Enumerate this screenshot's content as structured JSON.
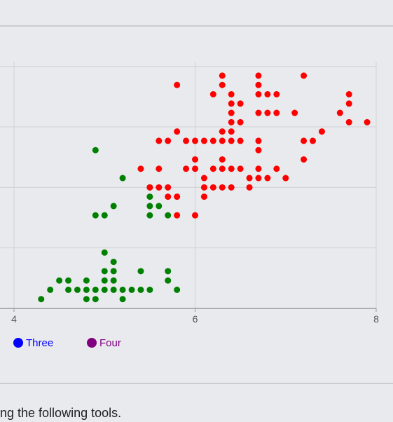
{
  "chart_data": {
    "type": "scatter",
    "title": "",
    "xlabel": "",
    "ylabel": "",
    "xlim": [
      3.7,
      8
    ],
    "ylim": [
      0,
      2.65
    ],
    "x_ticks": [
      4,
      6,
      8
    ],
    "y_ticks": [
      0.65,
      1.3,
      1.95,
      2.6
    ],
    "grid": true,
    "legend_position": "bottom-left",
    "series": [
      {
        "color": "#008000",
        "points": [
          [
            4.3,
            0.1
          ],
          [
            4.4,
            0.2
          ],
          [
            4.5,
            0.3
          ],
          [
            4.6,
            0.2
          ],
          [
            4.6,
            0.3
          ],
          [
            4.7,
            0.2
          ],
          [
            4.8,
            0.1
          ],
          [
            4.8,
            0.2
          ],
          [
            4.8,
            0.3
          ],
          [
            4.9,
            0.1
          ],
          [
            4.9,
            0.2
          ],
          [
            5.0,
            0.2
          ],
          [
            5.0,
            0.3
          ],
          [
            5.0,
            0.4
          ],
          [
            5.0,
            0.6
          ],
          [
            5.1,
            0.2
          ],
          [
            5.1,
            0.3
          ],
          [
            5.1,
            0.4
          ],
          [
            5.1,
            0.5
          ],
          [
            5.2,
            0.1
          ],
          [
            5.2,
            0.2
          ],
          [
            5.3,
            0.2
          ],
          [
            5.4,
            0.2
          ],
          [
            5.4,
            0.4
          ],
          [
            5.5,
            0.2
          ],
          [
            5.7,
            0.3
          ],
          [
            5.7,
            0.4
          ],
          [
            5.8,
            0.2
          ],
          [
            4.9,
            1.0
          ],
          [
            5.0,
            1.0
          ],
          [
            5.1,
            1.1
          ],
          [
            5.5,
            1.0
          ],
          [
            5.5,
            1.1
          ],
          [
            5.5,
            1.2
          ],
          [
            5.6,
            1.1
          ],
          [
            5.7,
            1.0
          ],
          [
            5.5,
            1.3
          ],
          [
            5.2,
            1.4
          ],
          [
            4.9,
            1.7
          ]
        ]
      },
      {
        "color": "#ff0000",
        "points": [
          [
            5.4,
            1.5
          ],
          [
            5.6,
            1.5
          ],
          [
            5.5,
            1.3
          ],
          [
            5.6,
            1.3
          ],
          [
            5.7,
            1.3
          ],
          [
            5.7,
            1.2
          ],
          [
            5.8,
            1.2
          ],
          [
            5.8,
            1.0
          ],
          [
            6.0,
            1.0
          ],
          [
            5.6,
            1.8
          ],
          [
            5.7,
            1.8
          ],
          [
            5.8,
            1.9
          ],
          [
            5.8,
            2.4
          ],
          [
            5.9,
            1.8
          ],
          [
            5.9,
            1.5
          ],
          [
            6.0,
            1.5
          ],
          [
            6.0,
            1.6
          ],
          [
            6.0,
            1.8
          ],
          [
            6.1,
            1.4
          ],
          [
            6.1,
            1.3
          ],
          [
            6.1,
            1.2
          ],
          [
            6.1,
            1.8
          ],
          [
            6.2,
            1.3
          ],
          [
            6.2,
            1.5
          ],
          [
            6.2,
            1.8
          ],
          [
            6.2,
            2.3
          ],
          [
            6.3,
            1.3
          ],
          [
            6.3,
            1.5
          ],
          [
            6.3,
            1.6
          ],
          [
            6.3,
            1.8
          ],
          [
            6.3,
            1.9
          ],
          [
            6.3,
            2.4
          ],
          [
            6.3,
            2.5
          ],
          [
            6.4,
            1.3
          ],
          [
            6.4,
            1.5
          ],
          [
            6.4,
            1.8
          ],
          [
            6.4,
            1.9
          ],
          [
            6.4,
            2.0
          ],
          [
            6.4,
            2.1
          ],
          [
            6.4,
            2.2
          ],
          [
            6.4,
            2.3
          ],
          [
            6.5,
            1.5
          ],
          [
            6.5,
            1.8
          ],
          [
            6.5,
            2.0
          ],
          [
            6.5,
            2.2
          ],
          [
            6.6,
            1.3
          ],
          [
            6.6,
            1.4
          ],
          [
            6.7,
            1.4
          ],
          [
            6.7,
            1.5
          ],
          [
            6.7,
            1.7
          ],
          [
            6.7,
            1.8
          ],
          [
            6.7,
            2.1
          ],
          [
            6.7,
            2.3
          ],
          [
            6.7,
            2.4
          ],
          [
            6.7,
            2.5
          ],
          [
            6.8,
            1.4
          ],
          [
            6.8,
            2.1
          ],
          [
            6.8,
            2.3
          ],
          [
            6.9,
            1.5
          ],
          [
            6.9,
            2.1
          ],
          [
            6.9,
            2.3
          ],
          [
            7.0,
            1.4
          ],
          [
            7.1,
            2.1
          ],
          [
            7.2,
            1.6
          ],
          [
            7.2,
            1.8
          ],
          [
            7.2,
            2.5
          ],
          [
            7.3,
            1.8
          ],
          [
            7.4,
            1.9
          ],
          [
            7.6,
            2.1
          ],
          [
            7.7,
            2.0
          ],
          [
            7.7,
            2.2
          ],
          [
            7.7,
            2.3
          ],
          [
            7.9,
            2.0
          ]
        ]
      }
    ],
    "legend": [
      {
        "label": "Three",
        "color": "#0000ff"
      },
      {
        "label": "Four",
        "color": "#800080"
      }
    ]
  },
  "footer": {
    "text": "ng the following tools."
  }
}
